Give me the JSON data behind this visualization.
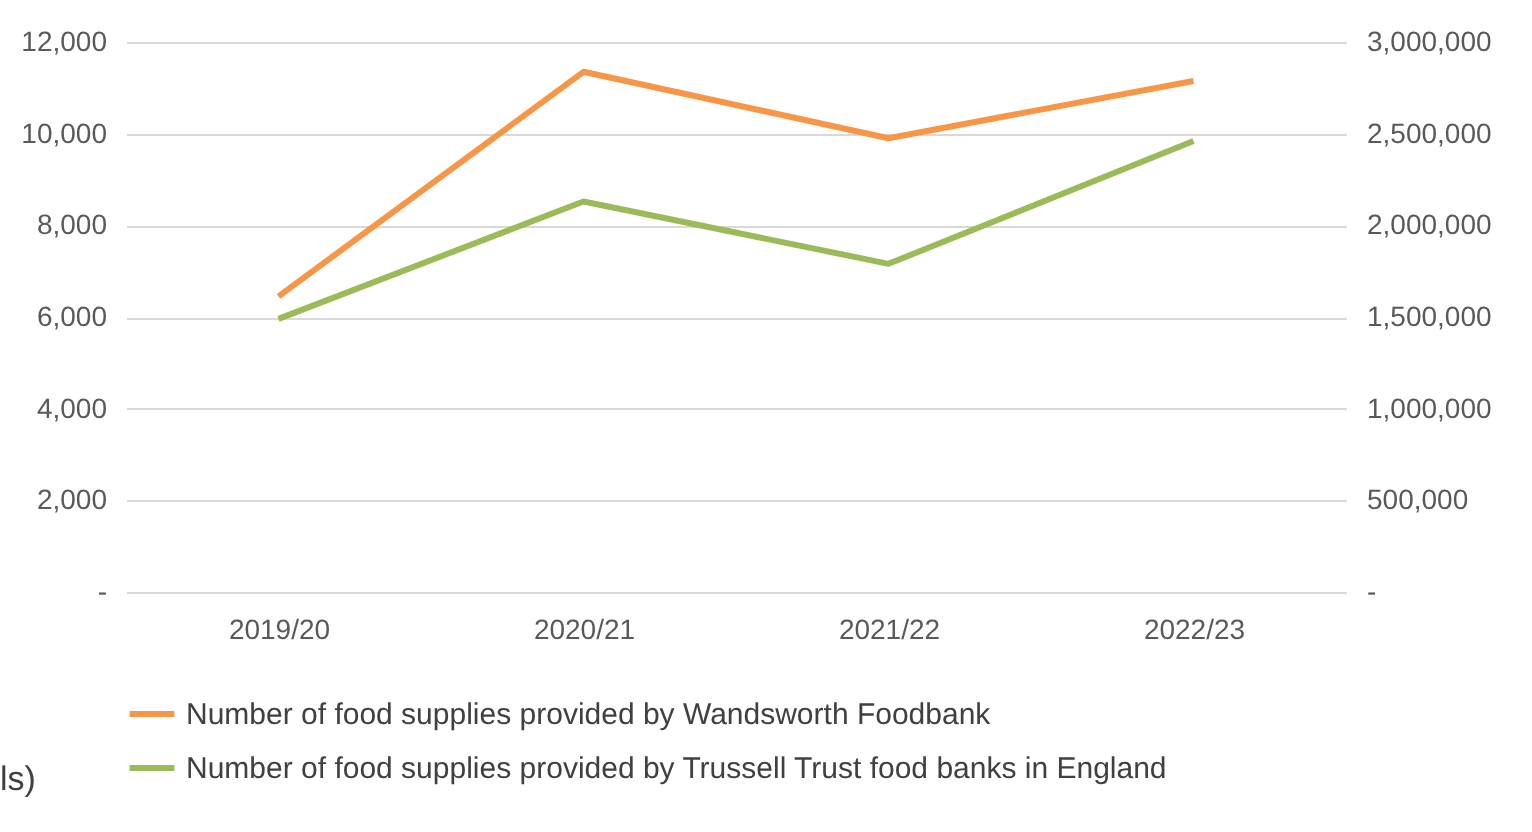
{
  "chart_data": {
    "type": "line",
    "categories": [
      "2019/20",
      "2020/21",
      "2021/22",
      "2022/23"
    ],
    "series": [
      {
        "name": "Number of food supplies provided by Wandsworth Foodbank",
        "color": "#f79646",
        "values": [
          6450,
          11350,
          9900,
          11150
        ]
      },
      {
        "name": "Number of food supplies provided by Trussell Trust food banks in England",
        "color": "#9bbb59",
        "axis": "y2",
        "values": [
          1490000,
          2130000,
          1790000,
          2460000
        ]
      }
    ],
    "ylim": [
      0,
      12000
    ],
    "yticks": [
      {
        "value": 0,
        "label": "-"
      },
      {
        "value": 2000,
        "label": "2,000"
      },
      {
        "value": 4000,
        "label": "4,000"
      },
      {
        "value": 6000,
        "label": "6,000"
      },
      {
        "value": 8000,
        "label": "8,000"
      },
      {
        "value": 10000,
        "label": "10,000"
      },
      {
        "value": 12000,
        "label": "12,000"
      }
    ],
    "y2lim": [
      0,
      3000000
    ],
    "y2ticks": [
      {
        "value": 0,
        "label": "-"
      },
      {
        "value": 500000,
        "label": "500,000"
      },
      {
        "value": 1000000,
        "label": "1,000,000"
      },
      {
        "value": 1500000,
        "label": "1,500,000"
      },
      {
        "value": 2000000,
        "label": "2,000,000"
      },
      {
        "value": 2500000,
        "label": "2,500,000"
      },
      {
        "value": 3000000,
        "label": "3,000,000"
      }
    ],
    "grid": "y",
    "legend": "bottom",
    "marker": "none",
    "line_style": "solid",
    "annotations": [
      "ls)"
    ]
  }
}
